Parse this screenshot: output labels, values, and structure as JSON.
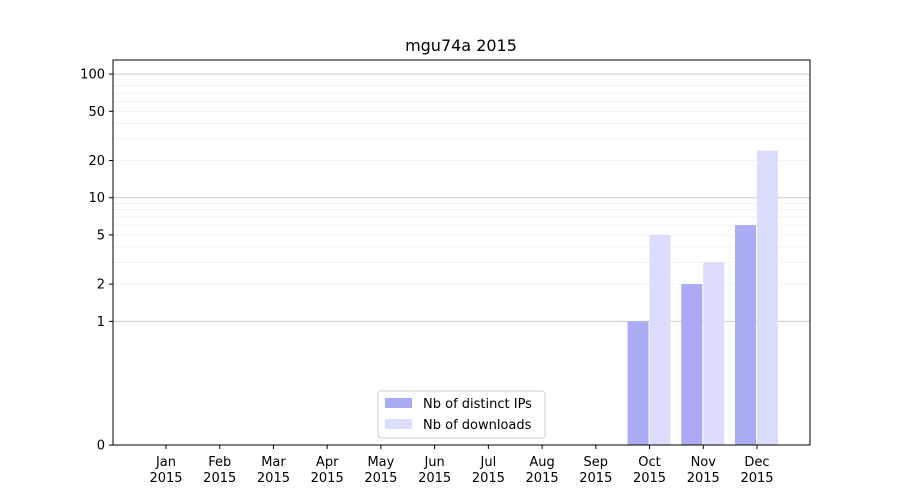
{
  "chart_data": {
    "type": "bar",
    "title": "mgu74a 2015",
    "xlabel": "",
    "ylabel": "",
    "yscale": "symlog",
    "ylim": [
      0,
      130
    ],
    "categories": [
      [
        "Jan",
        "2015"
      ],
      [
        "Feb",
        "2015"
      ],
      [
        "Mar",
        "2015"
      ],
      [
        "Apr",
        "2015"
      ],
      [
        "May",
        "2015"
      ],
      [
        "Jun",
        "2015"
      ],
      [
        "Jul",
        "2015"
      ],
      [
        "Aug",
        "2015"
      ],
      [
        "Sep",
        "2015"
      ],
      [
        "Oct",
        "2015"
      ],
      [
        "Nov",
        "2015"
      ],
      [
        "Dec",
        "2015"
      ]
    ],
    "yticks": [
      0,
      1,
      2,
      5,
      10,
      20,
      50,
      100
    ],
    "series": [
      {
        "name": "Nb of distinct IPs",
        "color": "#aaaaf5",
        "values": [
          0,
          0,
          0,
          0,
          0,
          0,
          0,
          0,
          0,
          1,
          2,
          6
        ]
      },
      {
        "name": "Nb of downloads",
        "color": "#dcdcfc",
        "values": [
          0,
          0,
          0,
          0,
          0,
          0,
          0,
          0,
          0,
          5,
          3,
          24
        ]
      }
    ],
    "grid": true,
    "legend_position": "lower-center"
  }
}
